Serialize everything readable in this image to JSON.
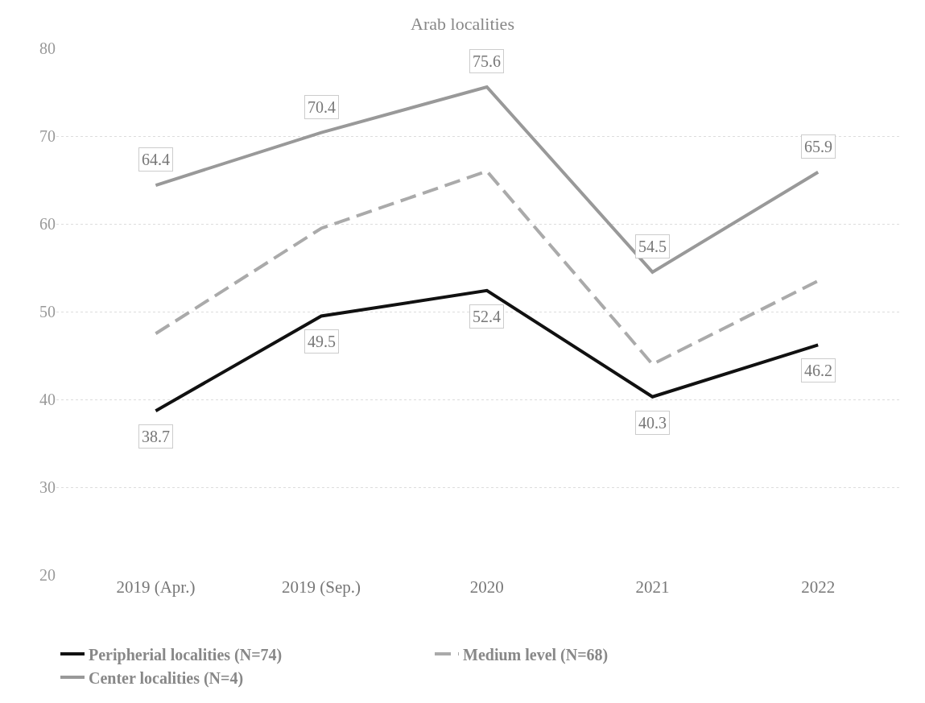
{
  "chart_data": {
    "type": "line",
    "title": "Arab localities",
    "categories": [
      "2019 (Apr.)",
      "2019 (Sep.)",
      "2020",
      "2021",
      "2022"
    ],
    "series": [
      {
        "name": "Peripherial localities (N=74)",
        "color": "#111111",
        "line_style": "solid",
        "values": [
          38.7,
          49.5,
          52.4,
          40.3,
          46.2
        ],
        "value_labels": [
          "38.7",
          "49.5",
          "52.4",
          "40.3",
          "46.2"
        ]
      },
      {
        "name": "Medium level (N=68)",
        "color": "#aaaaaa",
        "line_style": "dashed",
        "values": [
          47.5,
          59.5,
          66,
          44,
          53.5
        ]
      },
      {
        "name": "Center localities (N=4)",
        "color": "#999999",
        "line_style": "solid",
        "values": [
          64.4,
          70.4,
          75.6,
          54.5,
          65.9
        ],
        "value_labels": [
          "64.4",
          "70.4",
          "75.6",
          "54.5",
          "65.9"
        ]
      }
    ],
    "ylim": [
      20,
      80
    ],
    "yticks": [
      20,
      30,
      40,
      50,
      60,
      70,
      80
    ],
    "grid": "y",
    "legend": "bottom",
    "marker": "none"
  }
}
